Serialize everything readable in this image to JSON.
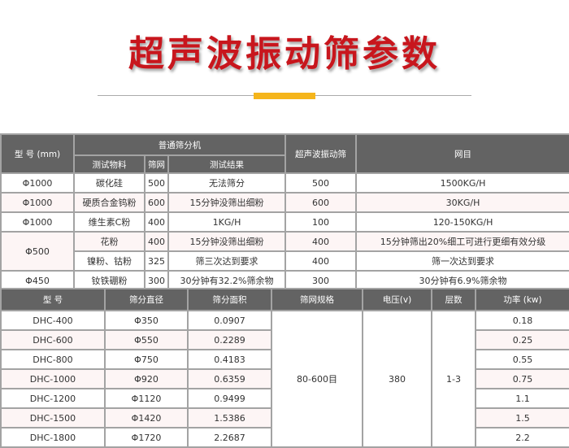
{
  "title": "超声波振动筛参数",
  "table1": {
    "h_model": "型 号 (mm)",
    "h_normal": "普通筛分机",
    "h_material": "测试物料",
    "h_mesh": "筛网",
    "h_result": "测试结果",
    "h_ultra": "超声波振动筛",
    "h_output": "网目",
    "rows": [
      {
        "model": "Φ1000",
        "material": "碳化硅",
        "mesh": "500",
        "result": "无法筛分",
        "ultra": "500",
        "output": "1500KG/H"
      },
      {
        "model": "Φ1000",
        "material": "硬质合金钨粉",
        "mesh": "600",
        "result": "15分钟没筛出细粉",
        "ultra": "600",
        "output": "30KG/H"
      },
      {
        "model": "Φ1000",
        "material": "维生素C粉",
        "mesh": "400",
        "result": "1KG/H",
        "ultra": "100",
        "output": "120-150KG/H"
      },
      {
        "model": "Φ500",
        "material": "花粉",
        "mesh": "400",
        "result": "15分钟没筛出细粉",
        "ultra": "400",
        "output": "15分钟筛出20%细工可进行更细有效分级"
      },
      {
        "material": "镍粉、钴粉",
        "mesh": "325",
        "result": "筛三次达到要求",
        "ultra": "400",
        "output": "筛一次达到要求"
      },
      {
        "model": "Φ450",
        "material": "钕铁硼粉",
        "mesh": "300",
        "result": "30分钟有32.2%筛余物",
        "ultra": "300",
        "output": "30分钟有6.9%筛余物"
      }
    ]
  },
  "table2": {
    "headers": [
      "型 号",
      "筛分直径",
      "筛分面积",
      "筛网规格",
      "电压(v)",
      "层数",
      "功率 (kw)"
    ],
    "mesh_spec": "80-600目",
    "voltage": "380",
    "layers": "1-3",
    "rows": [
      {
        "model": "DHC-400",
        "dia": "Φ350",
        "area": "0.0907",
        "power": "0.18"
      },
      {
        "model": "DHC-600",
        "dia": "Φ550",
        "area": "0.2289",
        "power": "0.25"
      },
      {
        "model": "DHC-800",
        "dia": "Φ750",
        "area": "0.4183",
        "power": "0.55"
      },
      {
        "model": "DHC-1000",
        "dia": "Φ920",
        "area": "0.6359",
        "power": "0.75"
      },
      {
        "model": "DHC-1200",
        "dia": "Φ1120",
        "area": "0.9499",
        "power": "1.1"
      },
      {
        "model": "DHC-1500",
        "dia": "Φ1420",
        "area": "1.5386",
        "power": "1.5"
      },
      {
        "model": "DHC-1800",
        "dia": "Φ1720",
        "area": "2.2687",
        "power": "2.2"
      }
    ]
  },
  "colors": {
    "title": "#c8161d",
    "accent": "#f5b51b",
    "header": "#636363",
    "alt_row": "#fdf5f5"
  }
}
